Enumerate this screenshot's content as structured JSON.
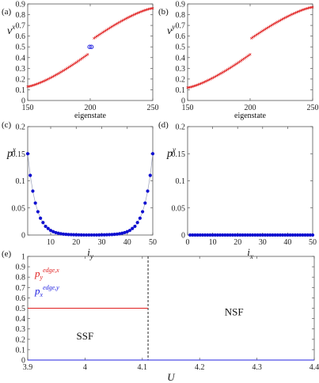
{
  "chart_data": [
    {
      "type": "scatter",
      "panel_label": "(a)",
      "ylabel": "v",
      "ylabel_sup": "x",
      "xlabel": "eigenstate",
      "xlim": [
        150,
        250
      ],
      "ylim": [
        0,
        0.9
      ],
      "xticks": [
        150,
        200,
        250
      ],
      "xtick_labels": [
        "150",
        "200",
        "250"
      ],
      "yticks": [
        0,
        0.1,
        0.2,
        0.3,
        0.4,
        0.5,
        0.6,
        0.7,
        0.8,
        0.9
      ],
      "ytick_labels": [
        "0",
        "0.1",
        "0.2",
        "0.3",
        "0.4",
        "0.5",
        "0.6",
        "0.7",
        "0.8",
        "0.9"
      ],
      "series": [
        {
          "color": "#e02020",
          "marker": "x",
          "segments": [
            {
              "x_start": 150,
              "x_end": 198,
              "y_start": 0.13,
              "y_end": 0.43,
              "shape": "convex"
            },
            {
              "x_start": 203,
              "x_end": 250,
              "y_start": 0.58,
              "y_end": 0.86,
              "shape": "concave"
            }
          ]
        },
        {
          "color": "#2020e0",
          "marker": "o",
          "points": [
            {
              "x": 199.5,
              "y": 0.5
            },
            {
              "x": 201,
              "y": 0.5
            }
          ]
        }
      ]
    },
    {
      "type": "scatter",
      "panel_label": "(b)",
      "ylabel": "v",
      "ylabel_sup": "y",
      "xlabel": "eigenstate",
      "xlim": [
        150,
        250
      ],
      "ylim": [
        0,
        0.9
      ],
      "xticks": [
        150,
        200,
        250
      ],
      "xtick_labels": [
        "150",
        "200",
        "250"
      ],
      "yticks": [
        0,
        0.1,
        0.2,
        0.3,
        0.4,
        0.5,
        0.6,
        0.7,
        0.8,
        0.9
      ],
      "ytick_labels": [
        "0",
        "0.1",
        "0.2",
        "0.3",
        "0.4",
        "0.5",
        "0.6",
        "0.7",
        "0.8",
        "0.9"
      ],
      "series": [
        {
          "color": "#e02020",
          "marker": "x",
          "segments": [
            {
              "x_start": 150,
              "x_end": 200,
              "y_start": 0.12,
              "y_end": 0.43,
              "shape": "convex"
            },
            {
              "x_start": 201,
              "x_end": 250,
              "y_start": 0.58,
              "y_end": 0.87,
              "shape": "concave"
            }
          ]
        }
      ]
    },
    {
      "type": "line",
      "panel_label": "(c)",
      "ylabel": "p",
      "ylabel_sup": "x",
      "xlabel": "i",
      "xlabel_sub": "y",
      "xlim": [
        1,
        50
      ],
      "ylim": [
        0,
        0.2
      ],
      "xticks": [
        10,
        20,
        30,
        40,
        50
      ],
      "xtick_labels": [
        "10",
        "20",
        "30",
        "40",
        "50"
      ],
      "yticks": [
        0,
        0.05,
        0.1,
        0.15,
        0.2
      ],
      "ytick_labels": [
        "0",
        "0.05",
        "0.1",
        "0.15",
        "0.2"
      ],
      "series": [
        {
          "color": "#1010d0",
          "marker": "o",
          "x": [
            1,
            2,
            3,
            4,
            5,
            6,
            7,
            8,
            9,
            10,
            11,
            12,
            13,
            14,
            15,
            16,
            17,
            18,
            19,
            20,
            21,
            22,
            23,
            24,
            25,
            26,
            27,
            28,
            29,
            30,
            31,
            32,
            33,
            34,
            35,
            36,
            37,
            38,
            39,
            40,
            41,
            42,
            43,
            44,
            45,
            46,
            47,
            48,
            49,
            50
          ],
          "y": [
            0.15,
            0.11,
            0.081,
            0.059,
            0.043,
            0.031,
            0.023,
            0.016,
            0.012,
            0.0085,
            0.0062,
            0.0045,
            0.0033,
            0.0024,
            0.0017,
            0.0013,
            0.0009,
            0.0007,
            0.0005,
            0.0004,
            0.0003,
            0.0002,
            0.0001,
            0.0001,
            0.0001,
            0.0001,
            0.0001,
            0.0001,
            0.0002,
            0.0003,
            0.0004,
            0.0005,
            0.0007,
            0.0009,
            0.0013,
            0.0017,
            0.0024,
            0.0033,
            0.0045,
            0.0062,
            0.0085,
            0.012,
            0.016,
            0.023,
            0.031,
            0.043,
            0.059,
            0.081,
            0.11,
            0.15
          ]
        }
      ]
    },
    {
      "type": "line",
      "panel_label": "(d)",
      "ylabel": "p",
      "ylabel_sup": "y",
      "xlabel": "i",
      "xlabel_sub": "x",
      "xlim": [
        0,
        50
      ],
      "ylim": [
        0,
        0.2
      ],
      "xticks": [
        0,
        10,
        20,
        30,
        40,
        50
      ],
      "xtick_labels": [
        "0",
        "10",
        "20",
        "30",
        "40",
        "50"
      ],
      "yticks": [
        0,
        0.05,
        0.1,
        0.15,
        0.2
      ],
      "ytick_labels": [
        "0",
        "0.05",
        "0.1",
        "0.15",
        "0.2"
      ],
      "series": [
        {
          "color": "#1010d0",
          "marker": "o",
          "x": [
            1,
            2,
            3,
            4,
            5,
            6,
            7,
            8,
            9,
            10,
            11,
            12,
            13,
            14,
            15,
            16,
            17,
            18,
            19,
            20,
            21,
            22,
            23,
            24,
            25,
            26,
            27,
            28,
            29,
            30,
            31,
            32,
            33,
            34,
            35,
            36,
            37,
            38,
            39,
            40,
            41,
            42,
            43,
            44,
            45,
            46,
            47,
            48,
            49,
            50
          ],
          "y": [
            0,
            0,
            0,
            0,
            0,
            0,
            0,
            0,
            0,
            0,
            0,
            0,
            0,
            0,
            0,
            0,
            0,
            0,
            0,
            0,
            0,
            0,
            0,
            0,
            0,
            0,
            0,
            0,
            0,
            0,
            0,
            0,
            0,
            0,
            0,
            0,
            0,
            0,
            0,
            0,
            0,
            0,
            0,
            0,
            0,
            0,
            0,
            0,
            0,
            0
          ]
        }
      ]
    },
    {
      "type": "line",
      "panel_label": "(e)",
      "xlabel": "U",
      "xlim": [
        3.9,
        4.4
      ],
      "ylim": [
        0,
        1
      ],
      "xticks": [
        3.9,
        4,
        4.1,
        4.2,
        4.3,
        4.4
      ],
      "xtick_labels": [
        "3.9",
        "4",
        "4.1",
        "4.2",
        "4.3",
        "4.4"
      ],
      "yticks": [
        0,
        0.1,
        0.2,
        0.3,
        0.4,
        0.5,
        0.6,
        0.7,
        0.8,
        0.9,
        1
      ],
      "ytick_labels": [
        "0",
        "0.1",
        "0.2",
        "0.3",
        "0.4",
        "0.5",
        "0.6",
        "0.7",
        "0.8",
        "0.9",
        "1"
      ],
      "transition_x": 4.11,
      "region_labels": [
        {
          "text": "SSF",
          "x": 4.0,
          "y": 0.2
        },
        {
          "text": "NSF",
          "x": 4.26,
          "y": 0.43
        }
      ],
      "series": [
        {
          "legend_base": "p",
          "legend_sub": "y",
          "legend_sup": "edge,x",
          "color": "#e02020",
          "segments": [
            {
              "x": [
                3.9,
                4.11
              ],
              "y": [
                0.5,
                0.5
              ]
            },
            {
              "x": [
                4.11,
                4.4
              ],
              "y": [
                0.0,
                0.0
              ]
            }
          ]
        },
        {
          "legend_base": "p",
          "legend_sub": "x",
          "legend_sup": "edge,y",
          "color": "#2020e0",
          "segments": [
            {
              "x": [
                3.9,
                4.4
              ],
              "y": [
                0.0,
                0.0
              ]
            }
          ]
        }
      ]
    }
  ]
}
